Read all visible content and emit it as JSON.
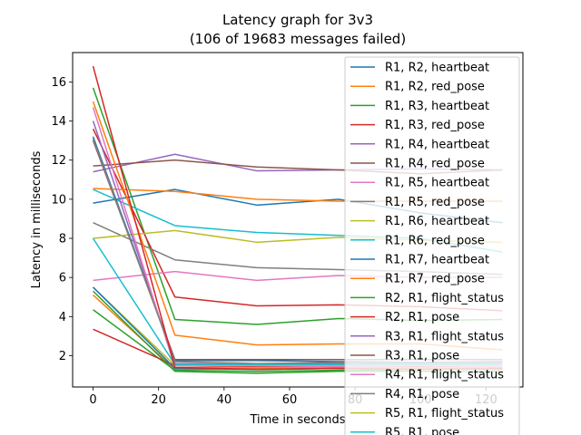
{
  "chart_data": {
    "type": "line",
    "title": "Latency graph for 3v3",
    "subtitle": "(106 of 19683 messages failed)",
    "xlabel": "Time in seconds",
    "ylabel": "Latency in milliseconds",
    "xlim": [
      -6.25,
      131.25
    ],
    "ylim": [
      0.4,
      17.5
    ],
    "xticks": [
      0,
      20,
      40,
      60,
      80,
      100,
      120
    ],
    "yticks": [
      2,
      4,
      6,
      8,
      10,
      12,
      14,
      16
    ],
    "grid": false,
    "legend_position": "top-right",
    "x": [
      0,
      25,
      50,
      75,
      100,
      125
    ],
    "series": [
      {
        "name": "R1, R2, heartbeat",
        "color": "#1f77b4",
        "values": [
          9.8,
          10.5,
          9.7,
          10.0,
          9.3,
          8.8
        ]
      },
      {
        "name": "R1, R2, red_pose",
        "color": "#ff7f0e",
        "values": [
          5.1,
          1.3,
          1.35,
          1.4,
          1.35,
          1.4
        ]
      },
      {
        "name": "R1, R3, heartbeat",
        "color": "#2ca02c",
        "values": [
          15.7,
          3.85,
          3.6,
          3.9,
          3.8,
          3.85
        ]
      },
      {
        "name": "R1, R3, red_pose",
        "color": "#d62728",
        "values": [
          13.6,
          5.0,
          4.55,
          4.6,
          4.5,
          4.3
        ]
      },
      {
        "name": "R1, R4, heartbeat",
        "color": "#9467bd",
        "values": [
          11.4,
          12.3,
          11.45,
          11.5,
          11.55,
          11.5
        ]
      },
      {
        "name": "R1, R4, red_pose",
        "color": "#8c564b",
        "values": [
          11.7,
          12.0,
          11.65,
          11.5,
          11.3,
          11.5
        ]
      },
      {
        "name": "R1, R5, heartbeat",
        "color": "#e377c2",
        "values": [
          5.85,
          6.3,
          5.85,
          6.1,
          6.0,
          6.0
        ]
      },
      {
        "name": "R1, R5, red_pose",
        "color": "#7f7f7f",
        "values": [
          8.8,
          6.9,
          6.5,
          6.4,
          6.3,
          6.15
        ]
      },
      {
        "name": "R1, R6, heartbeat",
        "color": "#bcbd22",
        "values": [
          8.0,
          8.4,
          7.8,
          8.05,
          7.9,
          7.8
        ]
      },
      {
        "name": "R1, R6, red_pose",
        "color": "#17becf",
        "values": [
          10.5,
          8.65,
          8.3,
          8.15,
          8.0,
          7.3
        ]
      },
      {
        "name": "R1, R7, heartbeat",
        "color": "#1f77b4",
        "values": [
          13.2,
          1.75,
          1.75,
          1.7,
          1.65,
          1.7
        ]
      },
      {
        "name": "R1, R7, red_pose",
        "color": "#ff7f0e",
        "values": [
          10.55,
          10.4,
          10.0,
          9.9,
          9.9,
          9.9
        ]
      },
      {
        "name": "R2, R1, flight_status",
        "color": "#2ca02c",
        "values": [
          4.35,
          1.25,
          1.2,
          1.25,
          1.3,
          1.3
        ]
      },
      {
        "name": "R2, R1, pose",
        "color": "#d62728",
        "values": [
          3.35,
          1.5,
          1.45,
          1.5,
          1.45,
          1.5
        ]
      },
      {
        "name": "R3, R1, flight_status",
        "color": "#9467bd",
        "values": [
          14.0,
          1.6,
          1.55,
          1.6,
          1.6,
          1.6
        ]
      },
      {
        "name": "R3, R1, pose",
        "color": "#8c564b",
        "values": [
          13.0,
          1.8,
          1.8,
          1.8,
          1.8,
          1.8
        ]
      },
      {
        "name": "R4, R1, flight_status",
        "color": "#e377c2",
        "values": [
          14.7,
          1.4,
          1.4,
          1.45,
          1.4,
          1.45
        ]
      },
      {
        "name": "R4, R1, pose",
        "color": "#7f7f7f",
        "values": [
          13.1,
          1.7,
          1.6,
          1.65,
          1.6,
          1.65
        ]
      },
      {
        "name": "R5, R1, flight_status",
        "color": "#bcbd22",
        "values": [
          5.5,
          1.5,
          1.5,
          1.5,
          1.5,
          1.5
        ]
      },
      {
        "name": "R5, R1, pose",
        "color": "#17becf",
        "values": [
          8.0,
          1.55,
          1.55,
          1.55,
          1.55,
          1.55
        ]
      },
      {
        "name": "",
        "color": "#1f77b4",
        "values": [
          5.5,
          1.35,
          1.3,
          1.35,
          1.3,
          1.35
        ]
      },
      {
        "name": "",
        "color": "#ff7f0e",
        "values": [
          15.0,
          3.05,
          2.55,
          2.6,
          2.6,
          2.3
        ]
      },
      {
        "name": "",
        "color": "#2ca02c",
        "values": [
          5.3,
          1.2,
          1.1,
          1.2,
          1.2,
          1.2
        ]
      },
      {
        "name": "",
        "color": "#d62728",
        "values": [
          16.8,
          1.4,
          1.3,
          1.35,
          1.3,
          1.35
        ]
      }
    ]
  }
}
